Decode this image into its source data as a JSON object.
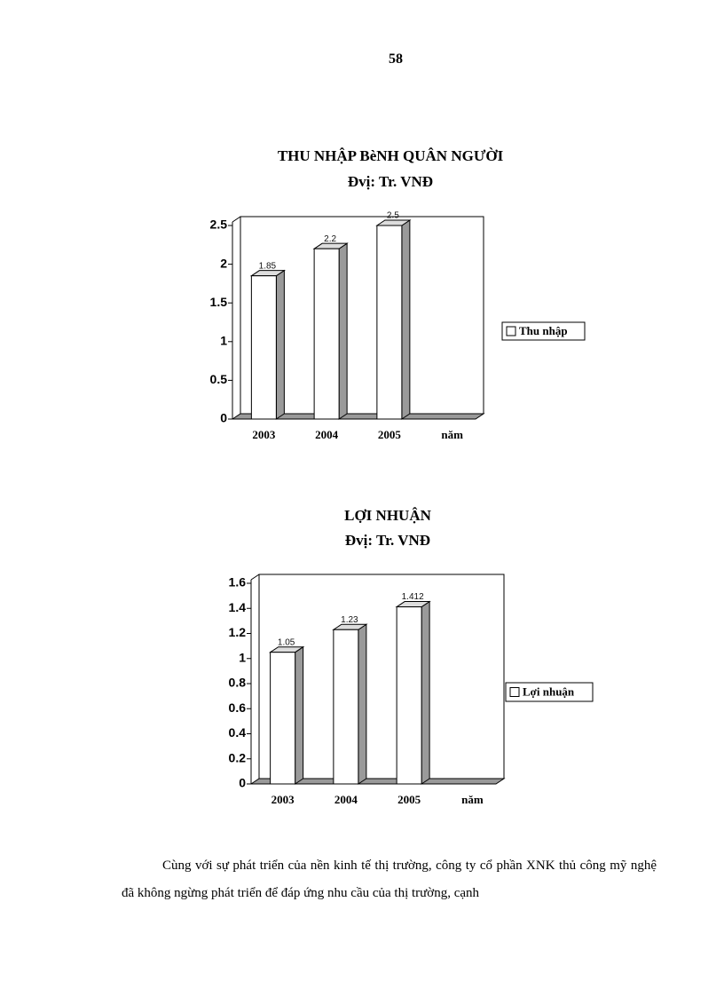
{
  "page_number": "58",
  "chart_data": [
    {
      "type": "bar",
      "title": "THU NHẬP BèNH QUÂN NGƯỜI",
      "subtitle": "Đvị: Tr. VNĐ",
      "categories": [
        "2003",
        "2004",
        "2005",
        "năm"
      ],
      "series": [
        {
          "name": "Thu nhập",
          "color": "#ffffff",
          "values": [
            1.85,
            2.2,
            2.5,
            null
          ]
        }
      ],
      "ylim": [
        0,
        2.5
      ],
      "yticks": [
        0,
        0.5,
        1,
        1.5,
        2,
        2.5
      ],
      "grid": false,
      "legend": "right"
    },
    {
      "type": "bar",
      "title": "LỢI NHUẬN",
      "subtitle": "Đvị: Tr. VNĐ",
      "categories": [
        "2003",
        "2004",
        "2005",
        "năm"
      ],
      "series": [
        {
          "name": "Lợi nhuận",
          "color": "#ffffff",
          "values": [
            1.05,
            1.23,
            1.412,
            null
          ]
        }
      ],
      "ylim": [
        0,
        1.6
      ],
      "yticks": [
        0,
        0.2,
        0.4,
        0.6,
        0.8,
        1,
        1.2,
        1.4,
        1.6
      ],
      "grid": false,
      "legend": "right"
    }
  ],
  "paragraph": "Cùng với sự phát triển của nền kinh tế thị trường, công ty cổ phần XNK thủ công mỹ nghệ đã không ngừng phát triển để đáp ứng nhu cầu của thị trường, cạnh"
}
